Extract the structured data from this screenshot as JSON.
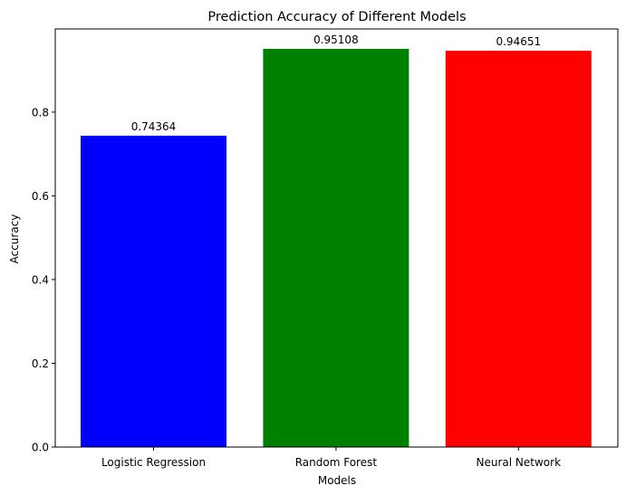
{
  "chart_data": {
    "type": "bar",
    "title": "Prediction Accuracy of Different Models",
    "xlabel": "Models",
    "ylabel": "Accuracy",
    "categories": [
      "Logistic Regression",
      "Random Forest",
      "Neural Network"
    ],
    "values": [
      0.74364,
      0.95108,
      0.94651
    ],
    "value_labels": [
      "0.74364",
      "0.95108",
      "0.94651"
    ],
    "colors": [
      "#0000ff",
      "#008000",
      "#ff0000"
    ],
    "ylim": [
      0,
      0.9986
    ],
    "yticks": [
      0.0,
      0.2,
      0.4,
      0.6,
      0.8
    ],
    "ytick_labels": [
      "0.0",
      "0.2",
      "0.4",
      "0.6",
      "0.8"
    ],
    "grid": false,
    "legend": "none"
  }
}
